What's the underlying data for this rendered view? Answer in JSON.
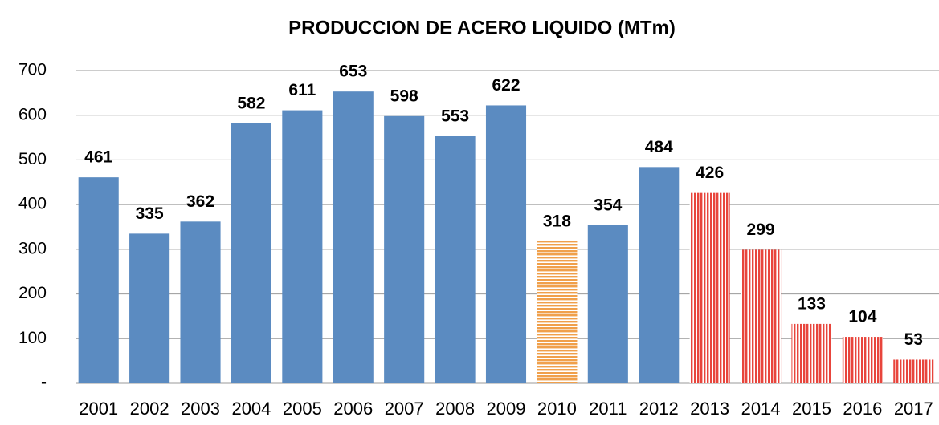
{
  "chart_data": {
    "type": "bar",
    "title": "PRODUCCION DE ACERO LIQUIDO (MTm)",
    "categories": [
      "2001",
      "2002",
      "2003",
      "2004",
      "2005",
      "2006",
      "2007",
      "2008",
      "2009",
      "2010",
      "2011",
      "2012",
      "2013",
      "2014",
      "2015",
      "2016",
      "2017"
    ],
    "values": [
      461,
      335,
      362,
      582,
      611,
      653,
      598,
      553,
      622,
      318,
      354,
      484,
      426,
      299,
      133,
      104,
      53
    ],
    "colors": [
      "#5b8bc1",
      "#5b8bc1",
      "#5b8bc1",
      "#5b8bc1",
      "#5b8bc1",
      "#5b8bc1",
      "#5b8bc1",
      "#5b8bc1",
      "#5b8bc1",
      "#f0a04b",
      "#5b8bc1",
      "#5b8bc1",
      "#e8453c",
      "#e8453c",
      "#e8453c",
      "#e8453c",
      "#e8453c"
    ],
    "patterns": [
      "solid",
      "solid",
      "solid",
      "solid",
      "solid",
      "solid",
      "solid",
      "solid",
      "solid",
      "horizontal-stripes",
      "solid",
      "solid",
      "vertical-stripes",
      "vertical-stripes",
      "vertical-stripes",
      "vertical-stripes",
      "vertical-stripes"
    ],
    "ylim": [
      0,
      700
    ],
    "yticks": [
      {
        "value": 0,
        "label": "-"
      },
      100,
      200,
      300,
      400,
      500,
      600,
      700
    ],
    "grid": true
  }
}
